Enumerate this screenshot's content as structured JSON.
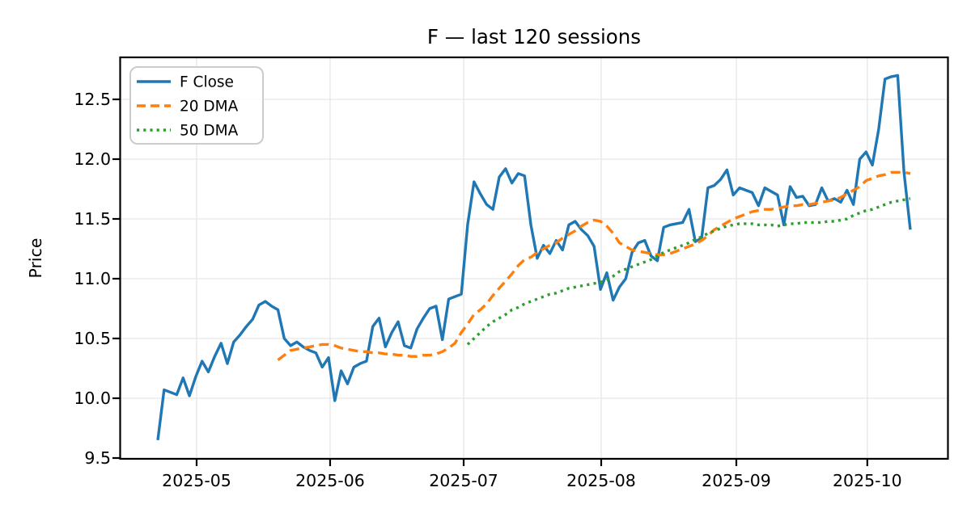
{
  "figure": {
    "title": "F — last 120 sessions"
  },
  "chart_data": {
    "type": "line",
    "title": "F — last 120 sessions",
    "xlabel": "",
    "ylabel": "Price",
    "x_tick_labels": [
      "2025-05",
      "2025-06",
      "2025-07",
      "2025-08",
      "2025-09",
      "2025-10"
    ],
    "x_tick_sessions": [
      6.14,
      27.25,
      48.37,
      70.12,
      91.49,
      112.2
    ],
    "y_tick_labels": [
      "9.5",
      "10.0",
      "10.5",
      "11.0",
      "11.5",
      "12.0",
      "12.5"
    ],
    "y_tick_values": [
      9.5,
      10.0,
      10.5,
      11.0,
      11.5,
      12.0,
      12.5
    ],
    "ylim": [
      9.48,
      12.86
    ],
    "n_sessions": 120,
    "grid": true,
    "colors": {
      "close": "#1f77b4",
      "dma20": "#ff7f0e",
      "dma50": "#2ca02c",
      "grid": "#e6e6e6",
      "spine": "#000000",
      "legend_border": "#cccccc"
    },
    "legend": {
      "position": "upper left",
      "entries": [
        "F Close",
        "20 DMA",
        "50 DMA"
      ]
    },
    "series": [
      {
        "name": "F Close",
        "style": "solid",
        "color_key": "close",
        "values": [
          9.65,
          10.07,
          10.05,
          10.03,
          10.17,
          10.02,
          10.18,
          10.31,
          10.22,
          10.35,
          10.46,
          10.29,
          10.47,
          10.53,
          10.6,
          10.66,
          10.78,
          10.81,
          10.77,
          10.74,
          10.5,
          10.44,
          10.47,
          10.43,
          10.4,
          10.38,
          10.26,
          10.34,
          9.98,
          10.23,
          10.12,
          10.26,
          10.29,
          10.31,
          10.6,
          10.67,
          10.43,
          10.55,
          10.64,
          10.44,
          10.42,
          10.58,
          10.67,
          10.75,
          10.77,
          10.49,
          10.83,
          10.85,
          10.87,
          11.45,
          11.81,
          11.71,
          11.62,
          11.58,
          11.85,
          11.92,
          11.8,
          11.88,
          11.86,
          11.45,
          11.17,
          11.28,
          11.21,
          11.32,
          11.24,
          11.45,
          11.48,
          11.41,
          11.36,
          11.27,
          10.91,
          11.05,
          10.82,
          10.93,
          11.0,
          11.22,
          11.3,
          11.32,
          11.19,
          11.15,
          11.43,
          11.45,
          11.46,
          11.47,
          11.58,
          11.31,
          11.34,
          11.76,
          11.78,
          11.83,
          11.91,
          11.7,
          11.76,
          11.74,
          11.72,
          11.61,
          11.76,
          11.73,
          11.7,
          11.45,
          11.77,
          11.68,
          11.69,
          11.61,
          11.62,
          11.76,
          11.65,
          11.67,
          11.64,
          11.74,
          11.62,
          12.0,
          12.06,
          11.95,
          12.25,
          12.67,
          12.69,
          12.7,
          11.89,
          11.41
        ]
      },
      {
        "name": "20 DMA",
        "style": "dashed",
        "color_key": "dma20",
        "values": [
          null,
          null,
          null,
          null,
          null,
          null,
          null,
          null,
          null,
          null,
          null,
          null,
          null,
          null,
          null,
          null,
          null,
          null,
          null,
          10.32,
          10.36,
          10.4,
          10.41,
          10.42,
          10.43,
          10.44,
          10.45,
          10.45,
          10.44,
          10.42,
          10.41,
          10.4,
          10.39,
          10.39,
          10.38,
          10.38,
          10.37,
          10.37,
          10.36,
          10.36,
          10.35,
          10.35,
          10.36,
          10.36,
          10.37,
          10.39,
          10.42,
          10.46,
          10.55,
          10.62,
          10.7,
          10.74,
          10.79,
          10.86,
          10.92,
          10.98,
          11.04,
          11.11,
          11.16,
          11.18,
          11.22,
          11.25,
          11.28,
          11.3,
          11.34,
          11.37,
          11.4,
          11.44,
          11.47,
          11.49,
          11.48,
          11.44,
          11.38,
          11.3,
          11.27,
          11.24,
          11.23,
          11.22,
          11.21,
          11.2,
          11.2,
          11.21,
          11.23,
          11.25,
          11.27,
          11.29,
          11.32,
          11.36,
          11.41,
          11.44,
          11.47,
          11.5,
          11.52,
          11.54,
          11.56,
          11.57,
          11.58,
          11.58,
          11.59,
          11.6,
          11.61,
          11.61,
          11.62,
          11.62,
          11.63,
          11.64,
          11.65,
          11.66,
          11.68,
          11.71,
          11.74,
          11.77,
          11.82,
          11.84,
          11.86,
          11.87,
          11.89,
          11.89,
          11.89,
          11.88
        ]
      },
      {
        "name": "50 DMA",
        "style": "dotted",
        "color_key": "dma50",
        "values": [
          null,
          null,
          null,
          null,
          null,
          null,
          null,
          null,
          null,
          null,
          null,
          null,
          null,
          null,
          null,
          null,
          null,
          null,
          null,
          null,
          null,
          null,
          null,
          null,
          null,
          null,
          null,
          null,
          null,
          null,
          null,
          null,
          null,
          null,
          null,
          null,
          null,
          null,
          null,
          null,
          null,
          null,
          null,
          null,
          null,
          null,
          null,
          null,
          null,
          10.45,
          10.5,
          10.55,
          10.6,
          10.64,
          10.67,
          10.7,
          10.74,
          10.76,
          10.79,
          10.81,
          10.83,
          10.85,
          10.87,
          10.88,
          10.9,
          10.92,
          10.93,
          10.94,
          10.95,
          10.96,
          10.97,
          10.99,
          11.02,
          11.06,
          11.08,
          11.1,
          11.12,
          11.14,
          11.16,
          11.19,
          11.22,
          11.24,
          11.26,
          11.28,
          11.3,
          11.33,
          11.35,
          11.38,
          11.4,
          11.42,
          11.44,
          11.45,
          11.46,
          11.46,
          11.46,
          11.45,
          11.45,
          11.45,
          11.44,
          11.45,
          11.46,
          11.46,
          11.47,
          11.47,
          11.47,
          11.47,
          11.48,
          11.48,
          11.49,
          11.5,
          11.53,
          11.55,
          11.57,
          11.58,
          11.6,
          11.62,
          11.64,
          11.65,
          11.66,
          11.67
        ]
      }
    ]
  }
}
